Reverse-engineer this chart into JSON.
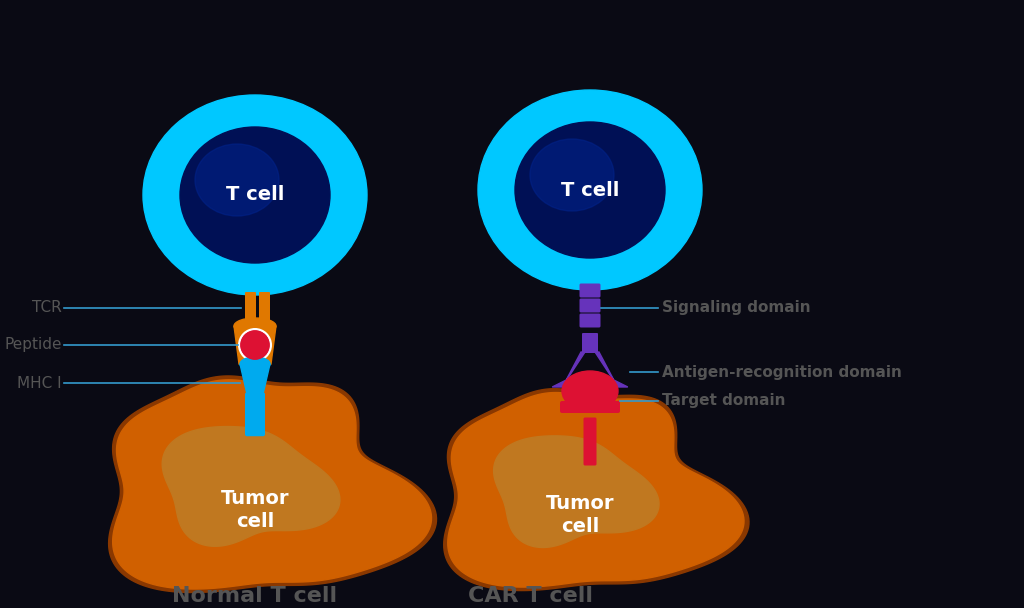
{
  "background_color": "#0a0a14",
  "title_color": "#555555",
  "label_color": "#555555",
  "line_color": "#3399cc",
  "normal_title": "Normal T cell",
  "car_title": "CAR T cell",
  "tcell_label": "T cell",
  "tumor_label": "Tumor\ncell",
  "tcr_label": "TCR",
  "peptide_label": "Peptide",
  "mhc_label": "MHC I",
  "signaling_label": "Signaling domain",
  "antigen_label": "Antigen-recognition domain",
  "target_label": "Target domain",
  "cyan_outer": "#00c8ff",
  "navy_inner": "#001055",
  "navy_mid": "#002288",
  "orange_tumor_outer": "#d06000",
  "orange_tumor_border": "#8a3800",
  "orange_tumor_inner": "#c07820",
  "tcr_orange": "#e07800",
  "mhc_blue": "#00aaee",
  "peptide_red": "#dd1133",
  "purple_car": "#6633bb",
  "car_red": "#dd1133"
}
